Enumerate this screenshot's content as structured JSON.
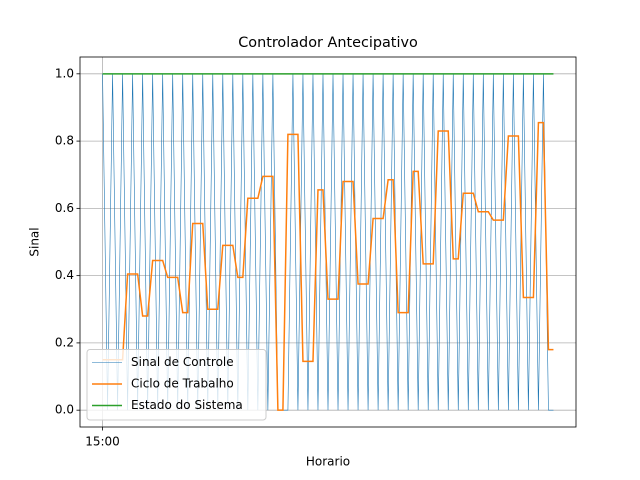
{
  "chart_data": {
    "type": "line",
    "title": "Controlador Antecipativo",
    "xlabel": "Horario",
    "ylabel": "Sinal",
    "x": [
      0,
      1,
      2,
      3,
      4,
      5,
      6,
      7,
      8,
      9,
      10,
      11,
      12,
      13,
      14,
      15,
      16,
      17,
      18,
      19,
      20,
      21,
      22,
      23,
      24,
      25,
      26,
      27,
      28,
      29,
      30,
      31,
      32,
      33,
      34,
      35,
      36,
      37,
      38,
      39,
      40,
      41,
      42,
      43,
      44,
      45,
      46,
      47,
      48,
      49,
      50,
      51,
      52,
      53,
      54,
      55,
      56,
      57,
      58,
      59,
      60,
      61,
      62,
      63,
      64,
      65,
      66,
      67,
      68,
      69,
      70,
      71,
      72,
      73,
      74,
      75,
      76,
      77,
      78,
      79,
      80,
      81,
      82,
      83,
      84,
      85,
      86,
      87,
      88,
      89,
      90
    ],
    "series": [
      {
        "name": "Sinal de Controle",
        "color": "#1f77b4",
        "values": [
          1,
          0,
          1,
          0,
          1,
          0,
          1,
          0,
          1,
          0,
          1,
          0,
          1,
          0,
          1,
          0,
          1,
          0,
          1,
          0,
          1,
          0,
          1,
          0,
          1,
          0,
          1,
          0,
          1,
          0,
          1,
          0,
          1,
          0,
          1,
          0,
          0,
          0,
          1,
          0,
          1,
          0,
          1,
          0,
          1,
          0,
          1,
          0,
          1,
          0,
          1,
          0,
          1,
          0,
          1,
          0,
          1,
          0,
          1,
          0,
          1,
          0,
          1,
          0,
          1,
          0,
          1,
          0,
          1,
          0,
          1,
          0,
          1,
          0,
          1,
          0,
          1,
          0,
          1,
          0,
          1,
          0,
          1,
          0,
          1,
          0,
          1,
          0,
          1,
          0,
          0
        ]
      },
      {
        "name": "Ciclo de Trabalho",
        "color": "#ff7f0e",
        "values": [
          0.15,
          0.15,
          0.15,
          0.15,
          0.15,
          0.405,
          0.405,
          0.405,
          0.28,
          0.28,
          0.445,
          0.445,
          0.445,
          0.395,
          0.395,
          0.395,
          0.29,
          0.29,
          0.555,
          0.555,
          0.555,
          0.3,
          0.3,
          0.3,
          0.49,
          0.49,
          0.49,
          0.395,
          0.395,
          0.63,
          0.63,
          0.63,
          0.695,
          0.695,
          0.695,
          0,
          0,
          0.82,
          0.82,
          0.82,
          0.145,
          0.145,
          0.145,
          0.655,
          0.655,
          0.33,
          0.33,
          0.33,
          0.68,
          0.68,
          0.68,
          0.375,
          0.375,
          0.375,
          0.57,
          0.57,
          0.57,
          0.685,
          0.685,
          0.29,
          0.29,
          0.29,
          0.71,
          0.71,
          0.435,
          0.435,
          0.435,
          0.83,
          0.83,
          0.83,
          0.45,
          0.45,
          0.645,
          0.645,
          0.645,
          0.59,
          0.59,
          0.59,
          0.565,
          0.565,
          0.565,
          0.815,
          0.815,
          0.815,
          0.335,
          0.335,
          0.335,
          0.855,
          0.855,
          0.18,
          0.18
        ]
      },
      {
        "name": "Estado do Sistema",
        "color": "#2ca02c",
        "values": [
          1,
          1,
          1,
          1,
          1,
          1,
          1,
          1,
          1,
          1,
          1,
          1,
          1,
          1,
          1,
          1,
          1,
          1,
          1,
          1,
          1,
          1,
          1,
          1,
          1,
          1,
          1,
          1,
          1,
          1,
          1,
          1,
          1,
          1,
          1,
          1,
          1,
          1,
          1,
          1,
          1,
          1,
          1,
          1,
          1,
          1,
          1,
          1,
          1,
          1,
          1,
          1,
          1,
          1,
          1,
          1,
          1,
          1,
          1,
          1,
          1,
          1,
          1,
          1,
          1,
          1,
          1,
          1,
          1,
          1,
          1,
          1,
          1,
          1,
          1,
          1,
          1,
          1,
          1,
          1,
          1,
          1,
          1,
          1,
          1,
          1,
          1,
          1,
          1,
          1,
          1
        ]
      }
    ],
    "xlim": [
      -4.5,
      94.5
    ],
    "xticks": [
      {
        "value": 0,
        "label": "15:00"
      }
    ],
    "ylim": [
      -0.05,
      1.05
    ],
    "yticks": [
      {
        "value": 0,
        "label": "0.0"
      },
      {
        "value": 0.2,
        "label": "0.2"
      },
      {
        "value": 0.4,
        "label": "0.4"
      },
      {
        "value": 0.6,
        "label": "0.6"
      },
      {
        "value": 0.8,
        "label": "0.8"
      },
      {
        "value": 1,
        "label": "1.0"
      }
    ],
    "grid": true,
    "legend": "lower left"
  }
}
